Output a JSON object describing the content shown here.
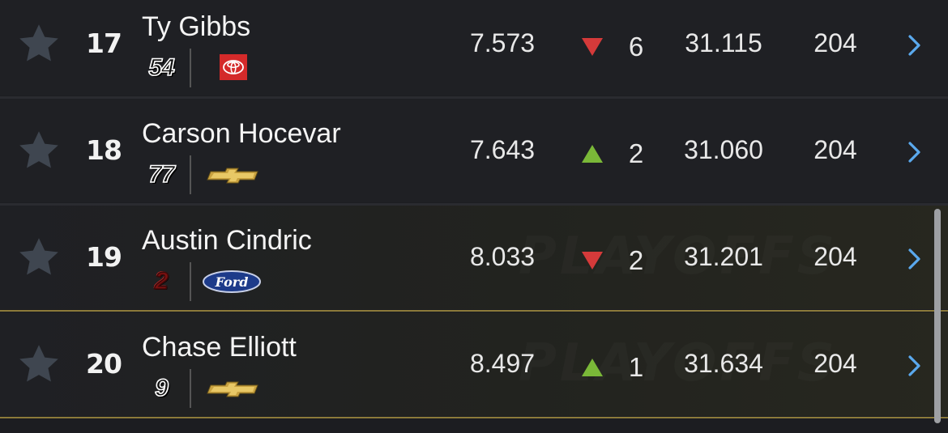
{
  "colors": {
    "up": "#7ab838",
    "down": "#d53a3a",
    "chevron": "#5aa9ee",
    "star": "#3f4650",
    "playoff_line": "#8c7a3a"
  },
  "watermark_text": "PLAYOFFS",
  "rows": [
    {
      "position": "17",
      "driver": "Ty Gibbs",
      "car_number": "54",
      "manufacturer": "toyota-logo",
      "interval": "7.573",
      "change_direction": "down",
      "change": "6",
      "last_lap": "31.115",
      "laps": "204"
    },
    {
      "position": "18",
      "driver": "Carson Hocevar",
      "car_number": "77",
      "manufacturer": "chevrolet-logo",
      "interval": "7.643",
      "change_direction": "up",
      "change": "2",
      "last_lap": "31.060",
      "laps": "204"
    },
    {
      "position": "19",
      "driver": "Austin Cindric",
      "car_number": "2",
      "manufacturer": "ford-logo",
      "interval": "8.033",
      "change_direction": "down",
      "change": "2",
      "last_lap": "31.201",
      "laps": "204"
    },
    {
      "position": "20",
      "driver": "Chase Elliott",
      "car_number": "9",
      "manufacturer": "chevrolet-logo",
      "interval": "8.497",
      "change_direction": "up",
      "change": "1",
      "last_lap": "31.634",
      "laps": "204"
    }
  ]
}
